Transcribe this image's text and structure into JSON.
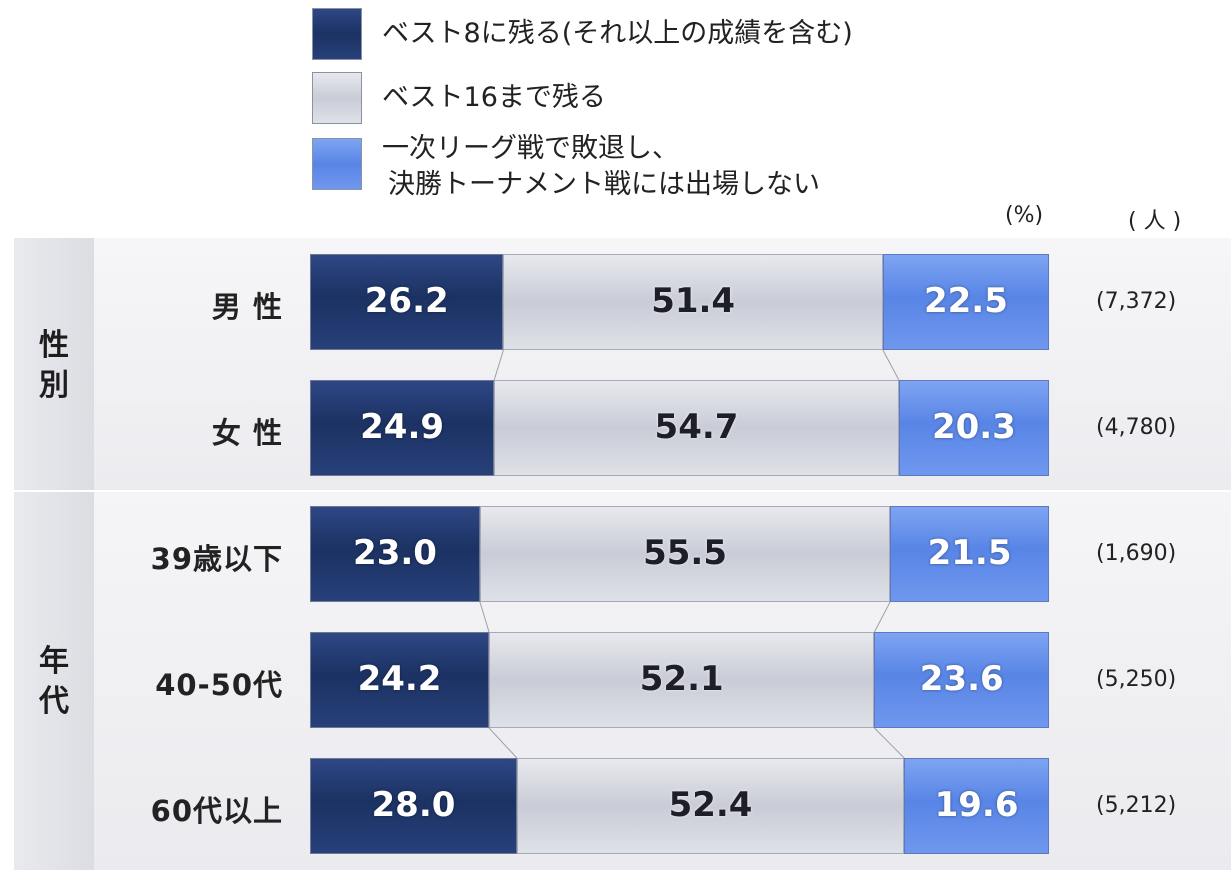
{
  "chart_data": {
    "type": "bar",
    "orientation": "horizontal-stacked-100",
    "unit_label": "(%)",
    "count_header": "( 人 )",
    "series": [
      {
        "name": "ベスト8に残る(それ以上の成績を含む)",
        "color": "#22386b"
      },
      {
        "name": "ベスト16まで残る",
        "color": "#d2d4dc"
      },
      {
        "name": "一次リーグ戦で敗退し、決勝トーナメント戦には出場しない",
        "color": "#6690ec"
      }
    ],
    "groups": [
      {
        "label": "性別",
        "rows": [
          {
            "label": "男 性",
            "values": [
              "26.2",
              "51.4",
              "22.5"
            ],
            "count": "(7,372)"
          },
          {
            "label": "女 性",
            "values": [
              "24.9",
              "54.7",
              "20.3"
            ],
            "count": "(4,780)"
          }
        ]
      },
      {
        "label": "年代",
        "rows": [
          {
            "label": "39歳以下",
            "values": [
              "23.0",
              "55.5",
              "21.5"
            ],
            "count": "(1,690)"
          },
          {
            "label": "40-50代",
            "values": [
              "24.2",
              "52.1",
              "23.6"
            ],
            "count": "(5,250)"
          },
          {
            "label": "60代以上",
            "values": [
              "28.0",
              "52.4",
              "19.6"
            ],
            "count": "(5,212)"
          }
        ]
      }
    ]
  },
  "legend": {
    "item1": "ベスト8に残る(それ以上の成績を含む)",
    "item2": "ベスト16まで残る",
    "item3_line1": "一次リーグ戦で敗退し、",
    "item3_line2": "決勝トーナメント戦には出場しない"
  },
  "headers": {
    "percent": "(%)",
    "people": "( 人 )"
  },
  "group_labels": {
    "gender": "性別",
    "age": "年代"
  }
}
